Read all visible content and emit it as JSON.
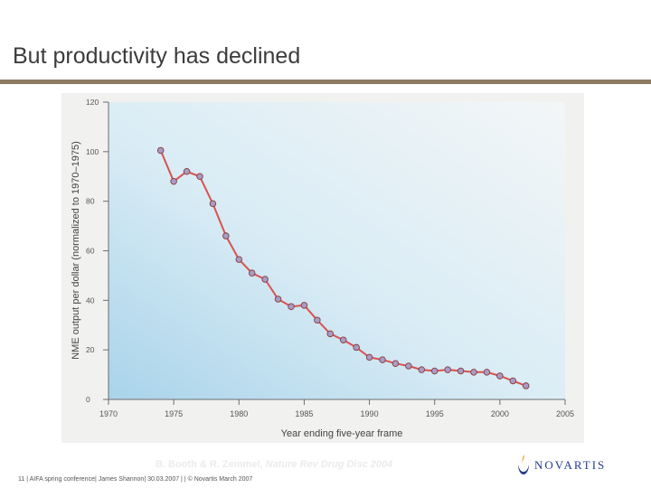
{
  "slide": {
    "title": "But productivity has declined"
  },
  "citation": {
    "authors": "B. Booth & R. Zemmel,",
    "journal": "Nature Rev Drug Disc 2004"
  },
  "footer": {
    "text": "11 | AIFA spring conference| James Shannon| 30.03.2007 | | © Novartis March 2007"
  },
  "logo": {
    "name": "NOVARTIS",
    "color": "#253b8f",
    "icon": "novartis-flame-icon"
  },
  "colors": {
    "line": "#d9534f",
    "marker_fill": "#a79cc6",
    "marker_stroke": "#8a3a3a",
    "title_rule": "#8c7c63"
  },
  "chart_data": {
    "type": "line",
    "title": "",
    "xlabel": "Year ending five-year frame",
    "ylabel": "NME output per dollar (normalized to 1970–1975)",
    "xlim": [
      1970,
      2005
    ],
    "ylim": [
      0,
      120
    ],
    "xticks": [
      1970,
      1975,
      1980,
      1985,
      1990,
      1995,
      2000,
      2005
    ],
    "yticks": [
      0,
      20,
      40,
      60,
      80,
      100,
      120
    ],
    "grid": false,
    "series": [
      {
        "name": "NME output per dollar",
        "x": [
          1974,
          1975,
          1976,
          1977,
          1978,
          1979,
          1980,
          1981,
          1982,
          1983,
          1984,
          1985,
          1986,
          1987,
          1988,
          1989,
          1990,
          1991,
          1992,
          1993,
          1994,
          1995,
          1996,
          1997,
          1998,
          1999,
          2000,
          2001,
          2002
        ],
        "y": [
          100.5,
          88,
          92,
          90,
          79,
          66,
          56.5,
          51,
          48.5,
          40.5,
          37.5,
          38,
          32,
          26.5,
          24,
          21,
          17,
          16,
          14.5,
          13.5,
          12,
          11.5,
          12,
          11.5,
          11,
          11,
          9.5,
          7.5,
          5.5
        ]
      }
    ]
  }
}
